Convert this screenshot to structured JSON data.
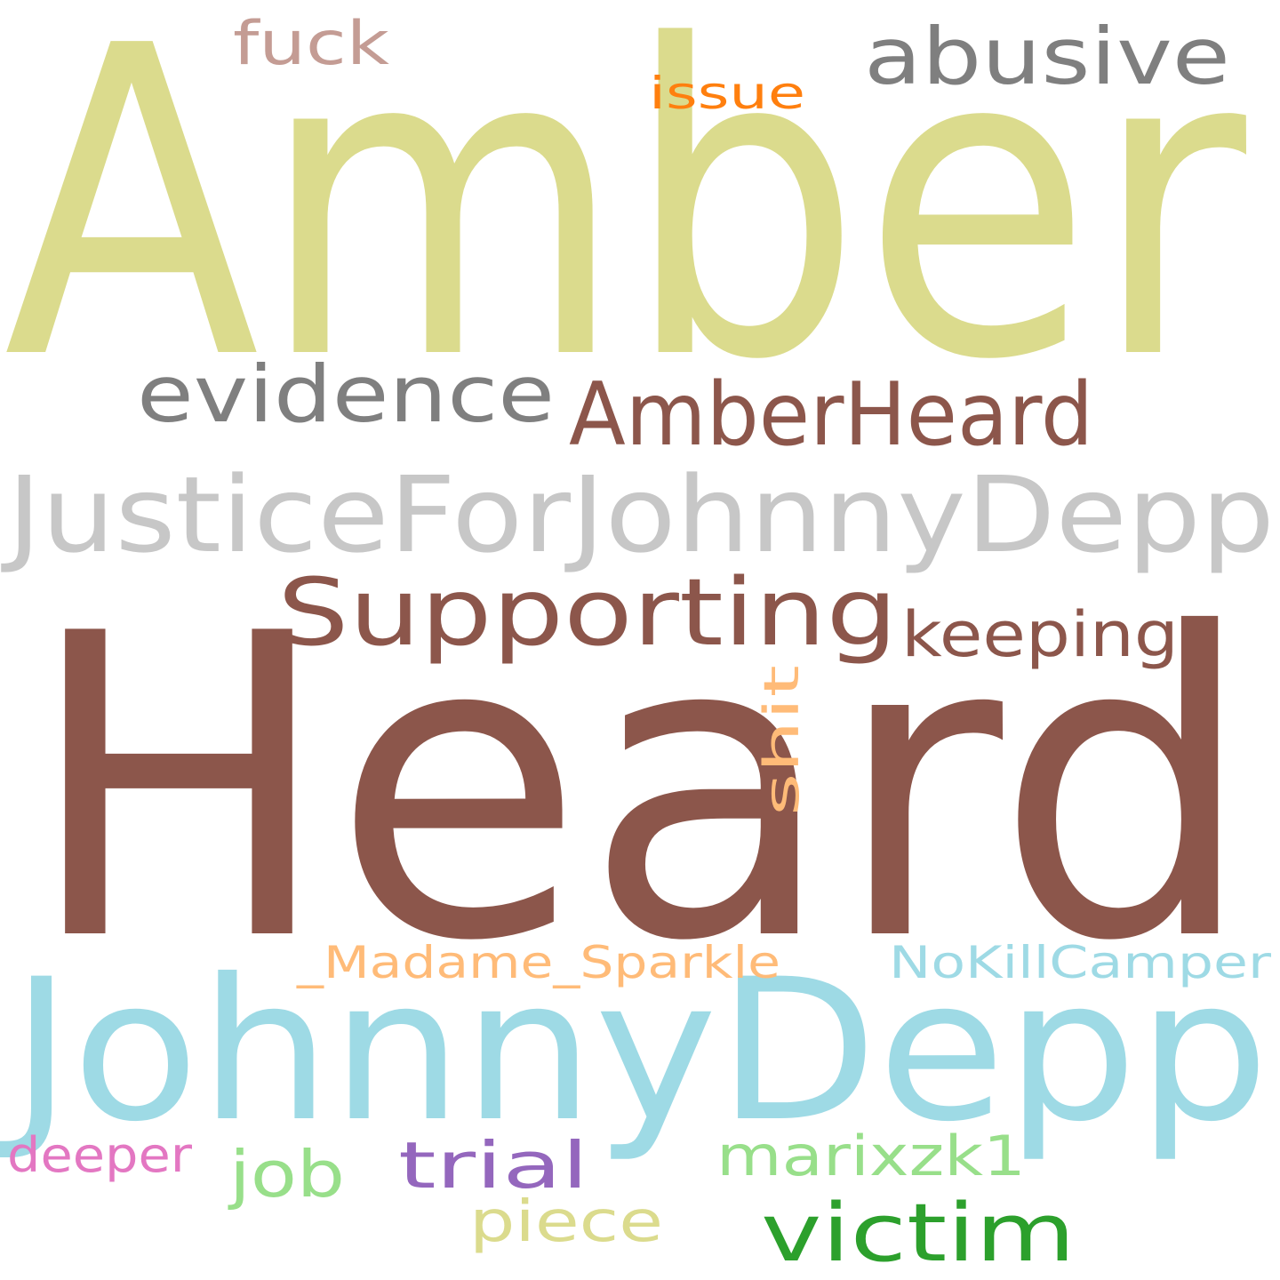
{
  "words": [
    {
      "text": "Amber",
      "color": "#dbdb8d"
    },
    {
      "text": "Heard",
      "color": "#8c564b"
    },
    {
      "text": "JohnnyDepp",
      "color": "#9edae5"
    },
    {
      "text": "JusticeForJohnnyDepp",
      "color": "#c7c7c7"
    },
    {
      "text": "AmberHeard",
      "color": "#8c564b"
    },
    {
      "text": "Supporting",
      "color": "#8c564b"
    },
    {
      "text": "evidence",
      "color": "#7f7f7f"
    },
    {
      "text": "abusive",
      "color": "#7f7f7f"
    },
    {
      "text": "keeping",
      "color": "#8c564b"
    },
    {
      "text": "victim",
      "color": "#2ca02c"
    },
    {
      "text": "fuck",
      "color": "#c49c94"
    },
    {
      "text": "issue",
      "color": "#ff7f0e"
    },
    {
      "text": "shit",
      "color": "#ffbb78"
    },
    {
      "text": "_Madame_Sparkle",
      "color": "#ffbb78"
    },
    {
      "text": "NoKillCamper",
      "color": "#9edae5"
    },
    {
      "text": "marixzk1",
      "color": "#98df8a"
    },
    {
      "text": "trial",
      "color": "#9467bd"
    },
    {
      "text": "job",
      "color": "#98df8a"
    },
    {
      "text": "piece",
      "color": "#dbdb8d"
    },
    {
      "text": "deeper",
      "color": "#e377c2"
    }
  ]
}
